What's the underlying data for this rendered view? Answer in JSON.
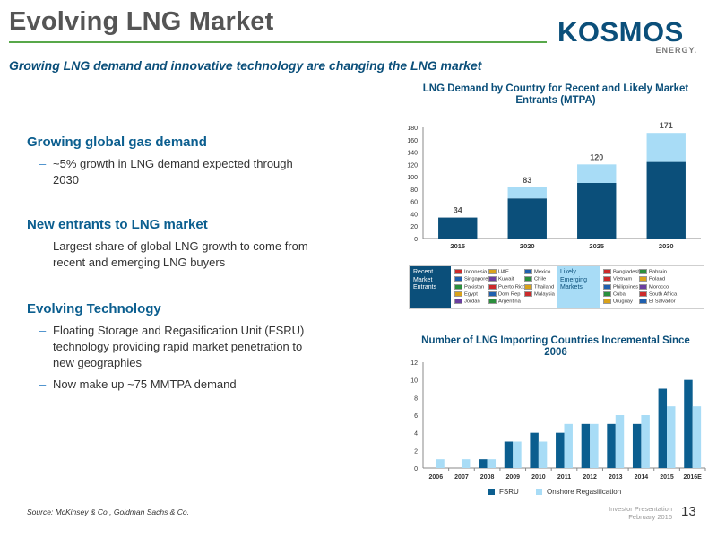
{
  "header": {
    "title": "Evolving LNG Market",
    "subtitle": "Growing LNG demand and innovative technology are changing the LNG market"
  },
  "logo": {
    "text": "KOSMOS",
    "sub": "ENERGY."
  },
  "sections": [
    {
      "heading": "Growing global gas demand",
      "bullets": [
        "~5% growth in LNG demand expected through 2030"
      ]
    },
    {
      "heading": "New entrants to LNG market",
      "bullets": [
        "Largest share of global LNG growth to come from recent and emerging LNG buyers"
      ]
    },
    {
      "heading": "Evolving Technology",
      "bullets": [
        "Floating Storage and Regasification Unit (FSRU) technology providing rapid market penetration to new geographies",
        "Now make up ~75 MMTPA demand"
      ]
    }
  ],
  "footer": {
    "source": "Source: McKinsey & Co., Goldman Sachs & Co.",
    "note_line1": "Investor Presentation",
    "note_line2": "February 2016",
    "page": "13"
  },
  "colors": {
    "dark_blue": "#0b4f7a",
    "light_blue": "#a8dcf6",
    "green_rule": "#58a84a"
  },
  "legend_box": {
    "recent_label": "Recent Market Entrants",
    "likely_label": "Likely Emerging Markets",
    "recent_col1": [
      "Indonesia",
      "Singapore",
      "Pakistan",
      "Egypt",
      "Jordan"
    ],
    "recent_col2": [
      "UAE",
      "Kuwait",
      "Puerto Rico",
      "Dom Rep",
      "Argentina"
    ],
    "recent_col3": [
      "Mexico",
      "Chile",
      "Thailand",
      "Malaysia"
    ],
    "likely_col1": [
      "Bangladesh",
      "Vietnam",
      "Philippines",
      "Cuba",
      "Uruguay"
    ],
    "likely_col2": [
      "Bahrain",
      "Poland",
      "Morocco",
      "South Africa",
      "El Salvador"
    ]
  },
  "chart_data": [
    {
      "type": "bar",
      "stacked": true,
      "title": "LNG Demand by Country for Recent and Likely Market Entrants (MTPA)",
      "categories": [
        "2015",
        "2020",
        "2025",
        "2030"
      ],
      "series": [
        {
          "name": "Recent Market Entrants",
          "values": [
            34,
            65,
            90,
            124
          ],
          "color": "#0b4f7a"
        },
        {
          "name": "Likely Emerging Markets",
          "values": [
            0,
            18,
            30,
            47
          ],
          "color": "#a8dcf6"
        }
      ],
      "totals": [
        34,
        83,
        120,
        171
      ],
      "ylim": [
        0,
        180
      ],
      "yticks": [
        0,
        20,
        40,
        60,
        80,
        100,
        120,
        140,
        160,
        180
      ],
      "xlabel": "",
      "ylabel": "",
      "grid": false
    },
    {
      "type": "bar",
      "stacked": false,
      "title": "Number of LNG Importing Countries Incremental Since 2006",
      "categories": [
        "2006",
        "2007",
        "2008",
        "2009",
        "2010",
        "2011",
        "2012",
        "2013",
        "2014",
        "2015",
        "2016E"
      ],
      "series": [
        {
          "name": "FSRU",
          "values": [
            0,
            0,
            1,
            3,
            4,
            4,
            5,
            5,
            5,
            9,
            10
          ],
          "color": "#0b5e8f"
        },
        {
          "name": "Onshore Regasification",
          "values": [
            1,
            1,
            1,
            3,
            3,
            5,
            5,
            6,
            6,
            7,
            7
          ],
          "color": "#a8dcf6"
        }
      ],
      "ylim": [
        0,
        12
      ],
      "yticks": [
        0,
        2,
        4,
        6,
        8,
        10,
        12
      ],
      "xlabel": "",
      "ylabel": "",
      "grid": false,
      "legend": "bottom"
    }
  ]
}
